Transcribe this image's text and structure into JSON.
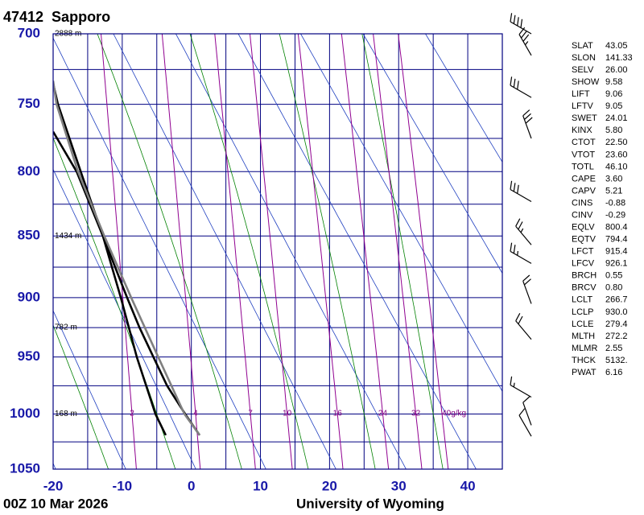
{
  "chart_data": {
    "type": "skewt",
    "title": "47412  Sapporo",
    "ylim": [
      1050,
      700
    ],
    "yscale": "stuve",
    "yticks": [
      700,
      750,
      800,
      850,
      900,
      950,
      1000,
      1050
    ],
    "yminor": [
      725,
      775,
      825,
      875,
      925,
      975,
      1025
    ],
    "xlim": [
      -20,
      45
    ],
    "xticks": [
      -20,
      -10,
      0,
      10,
      20,
      30,
      40
    ],
    "xgrid": [
      -20,
      -15,
      -10,
      -5,
      0,
      5,
      10,
      15,
      20,
      25,
      30,
      35,
      40,
      45
    ],
    "grid_color": "#000080",
    "dry_color": "#2040c0",
    "moist_color": "#008000",
    "mixing_color": "#900090",
    "heights": [
      {
        "p": 700,
        "label": "2888 m"
      },
      {
        "p": 850,
        "label": "1434 m"
      },
      {
        "p": 925,
        "label": "782 m"
      },
      {
        "p": 1000,
        "label": "168 m"
      }
    ],
    "mixing_ratios": [
      2,
      4,
      7,
      10,
      16,
      24,
      32,
      {
        "value": 40,
        "label": "40g/kg"
      }
    ],
    "dry_adiabats": [
      250,
      260,
      270,
      280,
      290,
      300,
      310,
      320,
      330,
      340
    ],
    "moist_adiabats": [
      -15,
      -5,
      5,
      15,
      25,
      35
    ],
    "profiles": [
      {
        "color": "#000000",
        "p": [
          1019,
          1000,
          975,
          950,
          925,
          900,
          850,
          800,
          750,
          735
        ],
        "t": [
          1.2,
          -0.9,
          -3.5,
          -5.5,
          -7.5,
          -9.3,
          -12.8,
          -16.0,
          -19.3,
          -20
        ]
      },
      {
        "color": "#000000",
        "p": [
          1019,
          1000,
          950,
          900,
          850,
          800,
          770
        ],
        "t": [
          -3.7,
          -5.2,
          -7.9,
          -10.2,
          -12.8,
          -16.6,
          -20
        ]
      },
      {
        "color": "#808080",
        "p": [
          1019,
          1000,
          950,
          900,
          850,
          800,
          750,
          733
        ],
        "t": [
          1.2,
          -1.0,
          -4.8,
          -8.7,
          -12.6,
          -16.4,
          -19.5,
          -20
        ]
      }
    ],
    "winds": [
      {
        "p": 700,
        "dir": 300,
        "speed": 40
      },
      {
        "p": 715,
        "dir": 330,
        "speed": 35
      },
      {
        "p": 745,
        "dir": 300,
        "speed": 30
      },
      {
        "p": 775,
        "dir": 340,
        "speed": 30
      },
      {
        "p": 823,
        "dir": 300,
        "speed": 30
      },
      {
        "p": 857,
        "dir": 320,
        "speed": 25
      },
      {
        "p": 872,
        "dir": 300,
        "speed": 25
      },
      {
        "p": 905,
        "dir": 340,
        "speed": 20
      },
      {
        "p": 935,
        "dir": 320,
        "speed": 20
      },
      {
        "p": 985,
        "dir": 300,
        "speed": 15
      },
      {
        "p": 1010,
        "dir": 340,
        "speed": 10
      },
      {
        "p": 1020,
        "dir": 330,
        "speed": 10
      }
    ]
  },
  "footer": {
    "time": "00Z 10 Mar 2026",
    "source": "University of Wyoming"
  },
  "indices": {
    "rows": [
      [
        "SLAT",
        "43.05"
      ],
      [
        "SLON",
        "141.33"
      ],
      [
        "SELV",
        "26.00"
      ],
      [
        "SHOW",
        "9.58"
      ],
      [
        "LIFT",
        "9.06"
      ],
      [
        "LFTV",
        "9.05"
      ],
      [
        "SWET",
        "24.01"
      ],
      [
        "KINX",
        "5.80"
      ],
      [
        "CTOT",
        "22.50"
      ],
      [
        "VTOT",
        "23.60"
      ],
      [
        "TOTL",
        "46.10"
      ],
      [
        "CAPE",
        "3.60"
      ],
      [
        "CAPV",
        "5.21"
      ],
      [
        "CINS",
        "-0.88"
      ],
      [
        "CINV",
        "-0.29"
      ],
      [
        "EQLV",
        "800.4"
      ],
      [
        "EQTV",
        "794.4"
      ],
      [
        "LFCT",
        "915.4"
      ],
      [
        "LFCV",
        "926.1"
      ],
      [
        "BRCH",
        "0.55"
      ],
      [
        "BRCV",
        "0.80"
      ],
      [
        "LCLT",
        "266.7"
      ],
      [
        "LCLP",
        "930.0"
      ],
      [
        "LCLE",
        "279.4"
      ],
      [
        "MLTH",
        "272.2"
      ],
      [
        "MLMR",
        "2.55"
      ],
      [
        "THCK",
        "5132."
      ],
      [
        "PWAT",
        "6.16"
      ]
    ]
  }
}
